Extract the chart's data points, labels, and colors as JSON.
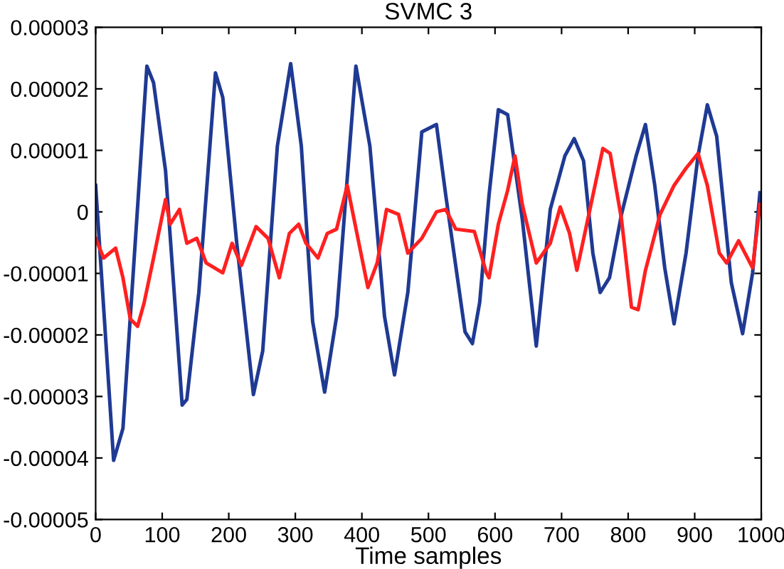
{
  "chart_data": {
    "type": "line",
    "title": "SVMC 3",
    "xlabel": "Time samples",
    "xlim": [
      0,
      1000
    ],
    "xticks": [
      0,
      100,
      200,
      300,
      400,
      500,
      600,
      700,
      800,
      900,
      1000
    ],
    "ylim": [
      -5e-05,
      3e-05
    ],
    "yticks": [
      {
        "value": -5e-05,
        "label": "-0.00005"
      },
      {
        "value": -4e-05,
        "label": "-0.00004"
      },
      {
        "value": -3e-05,
        "label": "-0.00003"
      },
      {
        "value": -2e-05,
        "label": "-0.00002"
      },
      {
        "value": -1e-05,
        "label": "-0.00001"
      },
      0,
      {
        "value": 1e-05,
        "label": "0.00001"
      },
      {
        "value": 2e-05,
        "label": "0.00002"
      },
      {
        "value": 3e-05,
        "label": "0.00003"
      }
    ],
    "grid": false,
    "legend": false,
    "series": [
      {
        "color": "#1f3a93",
        "x": [
          0,
          27,
          41,
          77,
          87,
          105,
          130,
          137,
          155,
          180,
          191,
          212,
          237,
          251,
          273,
          293,
          309,
          326,
          344,
          362,
          391,
          412,
          434,
          449,
          469,
          490,
          512,
          526,
          555,
          566,
          577,
          591,
          605,
          619,
          641,
          662,
          683,
          705,
          719,
          733,
          747,
          758,
          772,
          790,
          812,
          826,
          840,
          855,
          869,
          887,
          905,
          919,
          933,
          955,
          972,
          987,
          998
        ],
        "values": [
          4.3e-06,
          -4.04e-05,
          -3.52e-05,
          2.37e-05,
          2.1e-05,
          6.7e-06,
          -3.14e-05,
          -3.05e-05,
          -1.31e-05,
          2.26e-05,
          1.86e-05,
          -5.1e-06,
          -2.97e-05,
          -2.26e-05,
          1.07e-05,
          2.41e-05,
          1.07e-05,
          -1.78e-05,
          -2.93e-05,
          -1.7e-05,
          2.37e-05,
          1.07e-05,
          -1.7e-05,
          -2.65e-05,
          -1.31e-05,
          1.3e-05,
          1.42e-05,
          2.7e-06,
          -1.95e-05,
          -2.14e-05,
          -1.47e-05,
          2.7e-06,
          1.66e-05,
          1.58e-05,
          -1.2e-06,
          -2.18e-05,
          4e-07,
          9.1e-06,
          1.19e-05,
          8.3e-06,
          -6.7e-06,
          -1.31e-05,
          -1.07e-05,
          -4e-07,
          9.1e-06,
          1.42e-05,
          4.3e-06,
          -9.1e-06,
          -1.82e-05,
          -6.7e-06,
          9.1e-06,
          1.74e-05,
          1.23e-05,
          -1.15e-05,
          -1.98e-05,
          -9.9e-06,
          3.1e-06
        ]
      },
      {
        "color": "#ff2020",
        "x": [
          0,
          12,
          30,
          41,
          52,
          63,
          73,
          87,
          105,
          112,
          126,
          137,
          152,
          166,
          191,
          205,
          219,
          241,
          259,
          276,
          291,
          305,
          316,
          334,
          348,
          362,
          378,
          394,
          409,
          423,
          437,
          455,
          469,
          490,
          512,
          526,
          541,
          569,
          587,
          591,
          605,
          619,
          630,
          641,
          662,
          683,
          698,
          712,
          723,
          741,
          762,
          773,
          790,
          805,
          815,
          826,
          848,
          869,
          887,
          905,
          919,
          937,
          948,
          966,
          987,
          998
        ],
        "values": [
          -4.3e-06,
          -7.5e-06,
          -5.9e-06,
          -1.07e-05,
          -1.74e-05,
          -1.86e-05,
          -1.47e-05,
          -7.5e-06,
          2e-06,
          -2e-06,
          4e-07,
          -5.1e-06,
          -4.3e-06,
          -8.3e-06,
          -9.9e-06,
          -5.1e-06,
          -8.7e-06,
          -2.4e-06,
          -4.3e-06,
          -1.07e-05,
          -3.5e-06,
          -2e-06,
          -5.1e-06,
          -7.5e-06,
          -3.5e-06,
          -2.8e-06,
          4.3e-06,
          -4.3e-06,
          -1.23e-05,
          -8.3e-06,
          4e-07,
          -4e-07,
          -6.7e-06,
          -4.3e-06,
          0.0,
          4e-07,
          -2.8e-06,
          -3.2e-06,
          -9.9e-06,
          -1.07e-05,
          -2e-06,
          3.5e-06,
          9.1e-06,
          1.2e-06,
          -8.3e-06,
          -5.1e-06,
          8e-07,
          -3.5e-06,
          -9.5e-06,
          -4e-07,
          1.03e-05,
          9.5e-06,
          -1.2e-06,
          -1.55e-05,
          -1.59e-05,
          -9.5e-06,
          -4e-07,
          4.3e-06,
          7.1e-06,
          9.5e-06,
          4.3e-06,
          -6.7e-06,
          -8.3e-06,
          -4.7e-06,
          -9.1e-06,
          1.2e-06
        ]
      }
    ]
  }
}
